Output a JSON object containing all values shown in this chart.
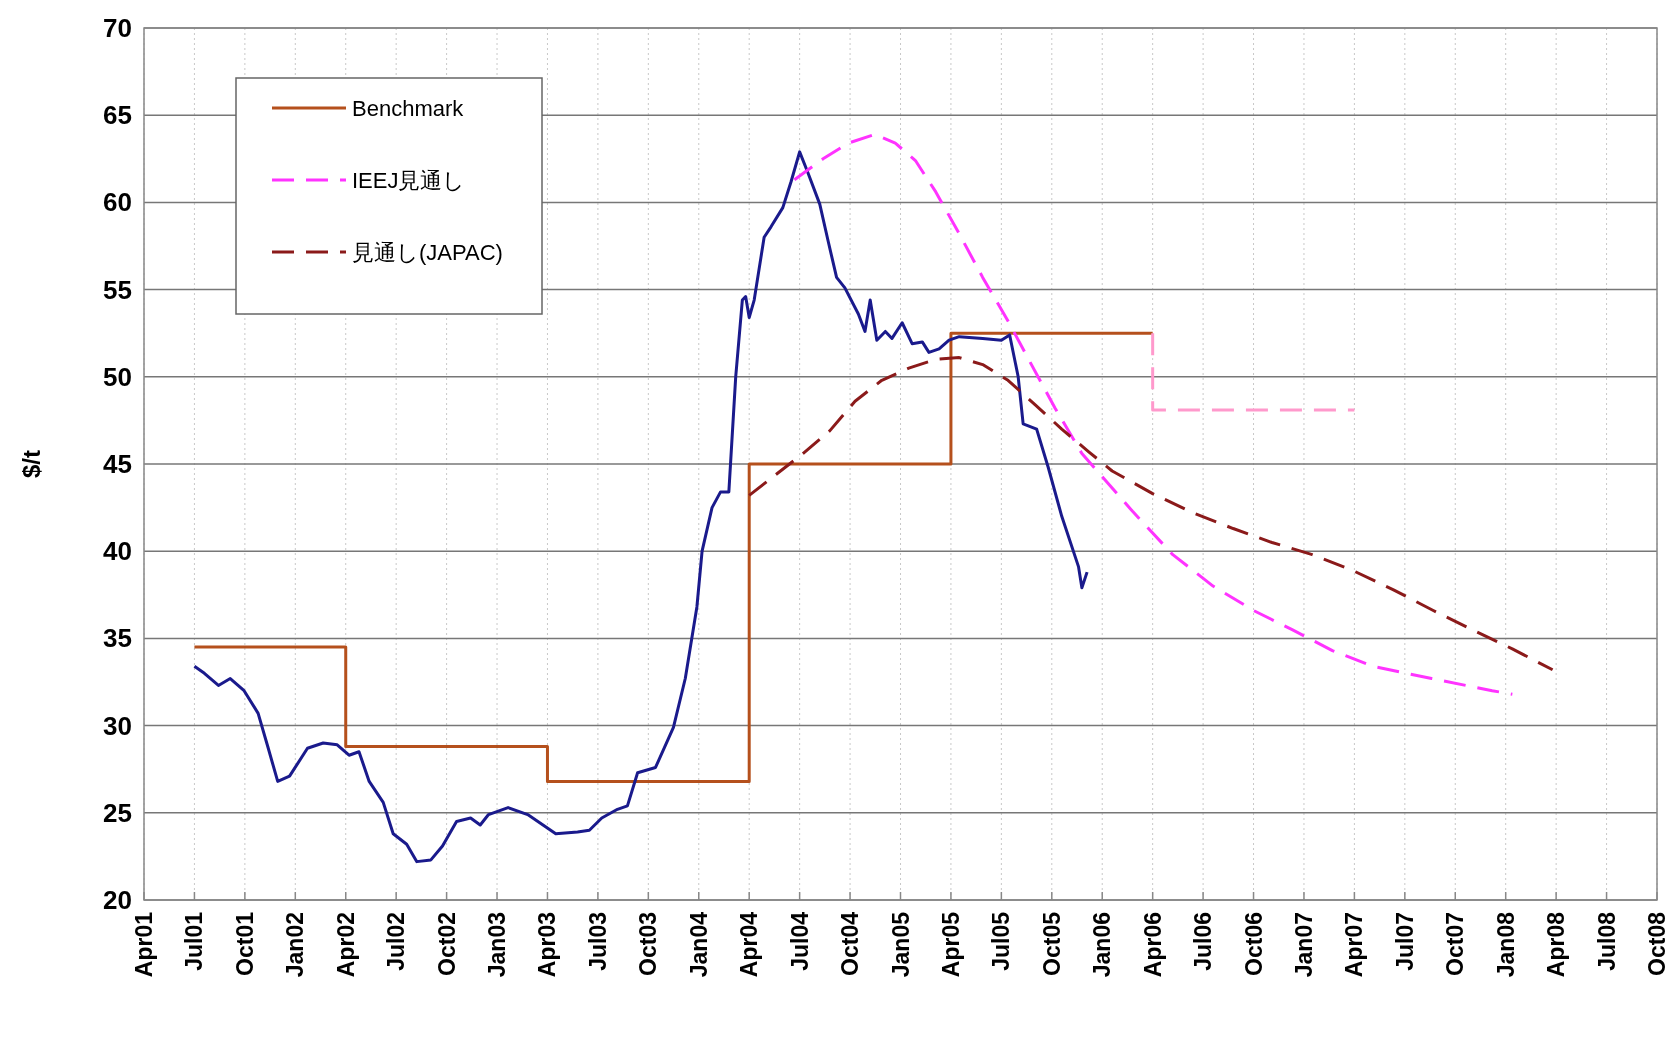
{
  "chart_data": {
    "type": "line",
    "ylabel": "$/t",
    "xlim": [
      "2001-04",
      "2008-10"
    ],
    "xticks": [
      {
        "value": "2001-04",
        "label": "Apr01"
      },
      {
        "value": "2001-07",
        "label": "Jul01"
      },
      {
        "value": "2001-10",
        "label": "Oct01"
      },
      {
        "value": "2002-01",
        "label": "Jan02"
      },
      {
        "value": "2002-04",
        "label": "Apr02"
      },
      {
        "value": "2002-07",
        "label": "Jul02"
      },
      {
        "value": "2002-10",
        "label": "Oct02"
      },
      {
        "value": "2003-01",
        "label": "Jan03"
      },
      {
        "value": "2003-04",
        "label": "Apr03"
      },
      {
        "value": "2003-07",
        "label": "Jul03"
      },
      {
        "value": "2003-10",
        "label": "Oct03"
      },
      {
        "value": "2004-01",
        "label": "Jan04"
      },
      {
        "value": "2004-04",
        "label": "Apr04"
      },
      {
        "value": "2004-07",
        "label": "Jul04"
      },
      {
        "value": "2004-10",
        "label": "Oct04"
      },
      {
        "value": "2005-01",
        "label": "Jan05"
      },
      {
        "value": "2005-04",
        "label": "Apr05"
      },
      {
        "value": "2005-07",
        "label": "Jul05"
      },
      {
        "value": "2005-10",
        "label": "Oct05"
      },
      {
        "value": "2006-01",
        "label": "Jan06"
      },
      {
        "value": "2006-04",
        "label": "Apr06"
      },
      {
        "value": "2006-07",
        "label": "Jul06"
      },
      {
        "value": "2006-10",
        "label": "Oct06"
      },
      {
        "value": "2007-01",
        "label": "Jan07"
      },
      {
        "value": "2007-04",
        "label": "Apr07"
      },
      {
        "value": "2007-07",
        "label": "Jul07"
      },
      {
        "value": "2007-10",
        "label": "Oct07"
      },
      {
        "value": "2008-01",
        "label": "Jan08"
      },
      {
        "value": "2008-04",
        "label": "Apr08"
      },
      {
        "value": "2008-07",
        "label": "Jul08"
      },
      {
        "value": "2008-10",
        "label": "Oct08"
      }
    ],
    "ylim": [
      20,
      70
    ],
    "yticks": [
      20,
      25,
      30,
      35,
      40,
      45,
      50,
      55,
      60,
      65,
      70
    ],
    "grid": true,
    "legend": "top left",
    "marker": "none",
    "series": [
      {
        "name": "Benchmark",
        "type": "step",
        "color": "#b5501c",
        "line_style": "solid",
        "x": [
          "2001-07",
          "2002-04",
          "2003-04",
          "2004-04",
          "2005-04",
          "2006-04"
        ],
        "values": [
          34.5,
          28.8,
          26.8,
          45,
          52.5,
          52.5
        ]
      },
      {
        "type": "line",
        "color": "#1a1a8c",
        "line_style": "solid",
        "x": [
          "2001-07-01",
          "2001-07-19",
          "2001-08-14",
          "2001-09-05",
          "2001-09-30",
          "2001-10-25",
          "2001-11-12",
          "2001-11-30",
          "2001-12-21",
          "2002-01-23",
          "2002-02-21",
          "2002-03-16",
          "2002-04-07",
          "2002-04-25",
          "2002-05-13",
          "2002-06-08",
          "2002-06-26",
          "2002-07-20",
          "2002-08-08",
          "2002-09-03",
          "2002-09-24",
          "2002-10-19",
          "2002-11-14",
          "2002-12-01",
          "2002-12-16",
          "2003-01-21",
          "2003-02-26",
          "2003-04-16",
          "2003-05-25",
          "2003-06-16",
          "2003-07-08",
          "2003-08-06",
          "2003-08-24",
          "2003-09-12",
          "2003-10-14",
          "2003-11-16",
          "2003-12-07",
          "2003-12-28",
          "2004-01-07",
          "2004-01-25",
          "2004-02-10",
          "2004-02-25",
          "2004-03-07",
          "2004-03-19",
          "2004-03-25",
          "2004-04-01",
          "2004-04-10",
          "2004-04-28",
          "2004-05-10",
          "2004-06-01",
          "2004-06-16",
          "2004-07-01",
          "2004-07-16",
          "2004-08-07",
          "2004-08-22",
          "2004-09-07",
          "2004-09-22",
          "2004-10-16",
          "2004-10-28",
          "2004-11-07",
          "2004-11-19",
          "2004-12-04",
          "2004-12-16",
          "2005-01-04",
          "2005-01-22",
          "2005-02-10",
          "2005-02-22",
          "2005-03-10",
          "2005-03-28",
          "2005-04-16",
          "2005-05-28",
          "2005-07-01",
          "2005-07-16",
          "2005-08-01",
          "2005-08-10",
          "2005-09-04",
          "2005-09-25",
          "2005-10-19",
          "2005-11-19",
          "2005-11-25",
          "2005-12-04"
        ],
        "values": [
          33.4,
          33.0,
          32.3,
          32.7,
          32.0,
          30.7,
          28.8,
          26.8,
          27.1,
          28.7,
          29.0,
          28.9,
          28.3,
          28.5,
          26.8,
          25.6,
          23.8,
          23.2,
          22.2,
          22.3,
          23.1,
          24.5,
          24.7,
          24.3,
          24.9,
          25.3,
          24.9,
          23.8,
          23.9,
          24.0,
          24.7,
          25.2,
          25.4,
          27.3,
          27.6,
          29.9,
          32.7,
          36.8,
          40.0,
          42.5,
          43.4,
          43.4,
          50.0,
          54.4,
          54.6,
          53.4,
          54.4,
          58.0,
          58.6,
          59.7,
          61.2,
          62.9,
          61.7,
          59.9,
          57.8,
          55.7,
          55.1,
          53.6,
          52.6,
          54.4,
          52.1,
          52.6,
          52.2,
          53.1,
          51.9,
          52.0,
          51.4,
          51.6,
          52.1,
          52.3,
          52.2,
          52.1,
          52.4,
          50.0,
          47.3,
          47.0,
          44.8,
          42.0,
          39.1,
          37.9,
          38.8
        ]
      },
      {
        "name": "IEEJ見通し",
        "type": "line",
        "color": "#ff33ff",
        "line_style": "dashed",
        "x": [
          "2004-06-22",
          "2004-08-13",
          "2004-09-28",
          "2004-11-16",
          "2004-12-22",
          "2005-01-28",
          "2005-03-04",
          "2005-04-16",
          "2005-05-28",
          "2005-07-13",
          "2005-08-25",
          "2005-10-07",
          "2005-11-25",
          "2006-02-25",
          "2006-05-07",
          "2006-07-19",
          "2006-10-01",
          "2006-12-10",
          "2007-02-22",
          "2007-05-04",
          "2007-08-19",
          "2007-12-07",
          "2008-01-13"
        ],
        "values": [
          61.3,
          62.5,
          63.4,
          63.9,
          63.4,
          62.4,
          60.6,
          58.2,
          55.7,
          53.2,
          50.7,
          48.2,
          45.6,
          42.3,
          39.8,
          38.0,
          36.6,
          35.5,
          34.3,
          33.4,
          32.7,
          32.0,
          31.8
        ]
      },
      {
        "name": "見通し(JAPAC)",
        "type": "line",
        "color": "#8b1a1a",
        "line_style": "dashed",
        "x": [
          "2004-04-01",
          "2004-05-19",
          "2004-07-07",
          "2004-08-25",
          "2004-10-10",
          "2004-11-28",
          "2005-01-16",
          "2005-03-04",
          "2005-04-16",
          "2005-05-28",
          "2005-07-13",
          "2005-09-01",
          "2005-10-19",
          "2005-12-07",
          "2006-01-19",
          "2006-04-01",
          "2006-06-13",
          "2006-08-25",
          "2006-11-04",
          "2007-01-16",
          "2007-03-28",
          "2007-06-10",
          "2007-08-22",
          "2007-11-01",
          "2008-01-13",
          "2008-03-25"
        ],
        "values": [
          43.2,
          44.4,
          45.6,
          46.9,
          48.6,
          49.8,
          50.5,
          51.0,
          51.1,
          50.7,
          49.8,
          48.4,
          47.0,
          45.7,
          44.6,
          43.3,
          42.2,
          41.3,
          40.5,
          39.8,
          38.9,
          37.8,
          36.6,
          35.5,
          34.4,
          33.2
        ]
      },
      {
        "type": "step",
        "color": "#ff99cc",
        "line_style": "dashed",
        "x": [
          "2006-04",
          "2006-04",
          "2007-04"
        ],
        "values": [
          52.5,
          48.1,
          48.1
        ]
      }
    ]
  }
}
